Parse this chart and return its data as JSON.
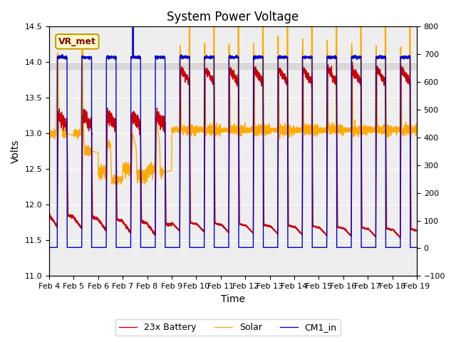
{
  "title": "System Power Voltage",
  "xlabel": "Time",
  "ylabel": "Volts",
  "xlim": [
    4,
    19
  ],
  "ylim_left": [
    11.0,
    14.5
  ],
  "ylim_right": [
    -100,
    800
  ],
  "yticks_left": [
    11.0,
    11.5,
    12.0,
    12.5,
    13.0,
    13.5,
    14.0,
    14.5
  ],
  "yticks_right": [
    -100,
    0,
    100,
    200,
    300,
    400,
    500,
    600,
    700,
    800
  ],
  "xtick_positions": [
    4,
    5,
    6,
    7,
    8,
    9,
    10,
    11,
    12,
    13,
    14,
    15,
    16,
    17,
    18,
    19
  ],
  "xtick_labels": [
    "Feb 4",
    "Feb 5",
    "Feb 6",
    "Feb 7",
    "Feb 8",
    "Feb 9",
    "Feb 10",
    "Feb 11",
    "Feb 12",
    "Feb 13",
    "Feb 14",
    "Feb 15",
    "Feb 16",
    "Feb 17",
    "Feb 18",
    "Feb 19"
  ],
  "shaded_ymin": 13.9,
  "shaded_ymax": 14.0,
  "shaded_color": "#d8d8d8",
  "legend_labels": [
    "23x Battery",
    "Solar",
    "CM1_in"
  ],
  "color_red": "#cc0000",
  "color_orange": "#ffaa00",
  "color_blue": "#0000cc",
  "vr_met_text": "VR_met",
  "vr_met_fg": "#880000",
  "vr_met_bg": "#ffffcc",
  "vr_met_edge": "#cc9900",
  "plot_facecolor": "#eeeeee",
  "title_fontsize": 12,
  "label_fontsize": 10,
  "tick_fontsize": 8,
  "legend_fontsize": 9
}
